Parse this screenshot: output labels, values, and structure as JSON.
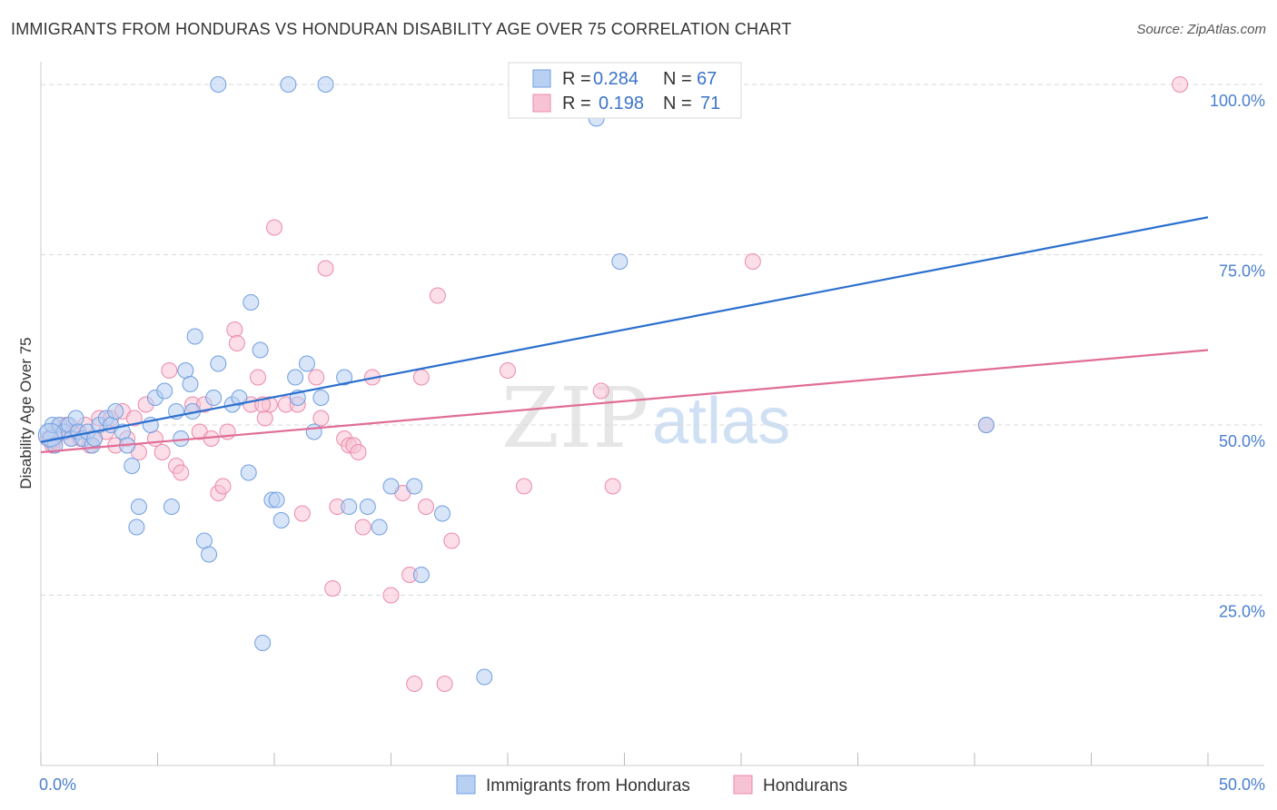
{
  "header": {
    "title": "IMMIGRANTS FROM HONDURAS VS HONDURAN DISABILITY AGE OVER 75 CORRELATION CHART",
    "source": "Source: ZipAtlas.com"
  },
  "colors": {
    "blue": "#6f9fe0",
    "blue_fill": "#b8d0f2",
    "blue_line": "#2b6fce",
    "pink": "#ec8aaa",
    "pink_fill": "#f7c3d4",
    "pink_line": "#e06d97",
    "grid": "#d9d9d9",
    "tick_text": "#4a7fd0"
  },
  "legend_top": {
    "rows": [
      {
        "r_label": "R =",
        "r_value": "0.284",
        "n_label": "N =",
        "n_value": "67"
      },
      {
        "r_label": "R =",
        "r_value": "0.198",
        "n_label": "N =",
        "n_value": "71"
      }
    ]
  },
  "legend_bottom": {
    "items": [
      {
        "label": "Immigrants from Honduras"
      },
      {
        "label": "Hondurans"
      }
    ]
  },
  "watermark": {
    "zip": "ZIP",
    "atlas": "atlas"
  },
  "chart_data": {
    "type": "scatter",
    "title": "IMMIGRANTS FROM HONDURAS VS HONDURAN DISABILITY AGE OVER 75 CORRELATION CHART",
    "xlabel": "",
    "ylabel": "Disability Age Over 75",
    "xlim": [
      0,
      50
    ],
    "ylim": [
      0,
      102
    ],
    "x_tick_labels": [
      "0.0%",
      "50.0%"
    ],
    "y_ticks": [
      25,
      50,
      75,
      100
    ],
    "y_tick_labels": [
      "25.0%",
      "50.0%",
      "75.0%",
      "100.0%"
    ],
    "grid": true,
    "legend": "top-center",
    "series": [
      {
        "name": "Immigrants from Honduras",
        "trend": {
          "x0": 0,
          "y0": 47.5,
          "x1": 50,
          "y1": 80.5
        },
        "points": [
          [
            0.3,
            49
          ],
          [
            0.4,
            48
          ],
          [
            0.5,
            50
          ],
          [
            0.6,
            47
          ],
          [
            0.8,
            50
          ],
          [
            1.0,
            49
          ],
          [
            1.2,
            50
          ],
          [
            1.3,
            48
          ],
          [
            1.5,
            51
          ],
          [
            1.6,
            49
          ],
          [
            1.8,
            48
          ],
          [
            2.0,
            49
          ],
          [
            2.2,
            47
          ],
          [
            2.3,
            48
          ],
          [
            2.5,
            50
          ],
          [
            2.8,
            51
          ],
          [
            3.0,
            50
          ],
          [
            3.2,
            52
          ],
          [
            3.5,
            49
          ],
          [
            3.7,
            47
          ],
          [
            3.9,
            44
          ],
          [
            4.1,
            35
          ],
          [
            4.2,
            38
          ],
          [
            4.7,
            50
          ],
          [
            4.9,
            54
          ],
          [
            5.3,
            55
          ],
          [
            5.6,
            38
          ],
          [
            5.8,
            52
          ],
          [
            6.0,
            48
          ],
          [
            6.2,
            58
          ],
          [
            6.4,
            56
          ],
          [
            6.5,
            52
          ],
          [
            6.6,
            63
          ],
          [
            7.0,
            33
          ],
          [
            7.2,
            31
          ],
          [
            7.4,
            54
          ],
          [
            7.6,
            59
          ],
          [
            8.2,
            53
          ],
          [
            8.5,
            54
          ],
          [
            8.9,
            43
          ],
          [
            9.0,
            68
          ],
          [
            9.4,
            61
          ],
          [
            9.5,
            18
          ],
          [
            9.9,
            39
          ],
          [
            10.1,
            39
          ],
          [
            10.3,
            36
          ],
          [
            10.9,
            57
          ],
          [
            11.0,
            54
          ],
          [
            11.4,
            59
          ],
          [
            11.7,
            49
          ],
          [
            12.0,
            54
          ],
          [
            13.0,
            57
          ],
          [
            13.2,
            38
          ],
          [
            14.0,
            38
          ],
          [
            14.5,
            35
          ],
          [
            15.0,
            41
          ],
          [
            16.0,
            41
          ],
          [
            16.3,
            28
          ],
          [
            17.2,
            37
          ],
          [
            19.0,
            13
          ],
          [
            7.6,
            100
          ],
          [
            10.6,
            100
          ],
          [
            12.2,
            100
          ],
          [
            23.8,
            95
          ],
          [
            25.0,
            100
          ],
          [
            24.8,
            74
          ],
          [
            40.5,
            50
          ]
        ]
      },
      {
        "name": "Hondurans",
        "trend": {
          "x0": 0,
          "y0": 46.0,
          "x1": 50,
          "y1": 61.0
        },
        "points": [
          [
            0.3,
            48
          ],
          [
            0.5,
            47
          ],
          [
            0.6,
            49
          ],
          [
            0.8,
            50
          ],
          [
            1.0,
            49
          ],
          [
            1.1,
            50
          ],
          [
            1.3,
            48
          ],
          [
            1.5,
            49
          ],
          [
            1.7,
            48
          ],
          [
            1.9,
            50
          ],
          [
            2.1,
            47
          ],
          [
            2.3,
            48
          ],
          [
            2.5,
            51
          ],
          [
            2.8,
            49
          ],
          [
            3.0,
            51
          ],
          [
            3.2,
            47
          ],
          [
            3.5,
            52
          ],
          [
            3.7,
            48
          ],
          [
            4.0,
            51
          ],
          [
            4.2,
            46
          ],
          [
            4.5,
            53
          ],
          [
            4.9,
            48
          ],
          [
            5.2,
            46
          ],
          [
            5.5,
            58
          ],
          [
            5.8,
            44
          ],
          [
            6.0,
            43
          ],
          [
            6.5,
            53
          ],
          [
            6.8,
            49
          ],
          [
            7.0,
            53
          ],
          [
            7.3,
            48
          ],
          [
            7.6,
            40
          ],
          [
            7.8,
            41
          ],
          [
            8.0,
            49
          ],
          [
            8.3,
            64
          ],
          [
            8.4,
            62
          ],
          [
            9.0,
            53
          ],
          [
            9.3,
            57
          ],
          [
            9.6,
            51
          ],
          [
            9.8,
            53
          ],
          [
            10.0,
            79
          ],
          [
            10.5,
            53
          ],
          [
            11.0,
            53
          ],
          [
            11.2,
            37
          ],
          [
            11.8,
            57
          ],
          [
            12.0,
            51
          ],
          [
            12.2,
            73
          ],
          [
            12.5,
            26
          ],
          [
            12.7,
            38
          ],
          [
            13.0,
            48
          ],
          [
            13.2,
            47
          ],
          [
            13.4,
            47
          ],
          [
            13.6,
            46
          ],
          [
            13.8,
            35
          ],
          [
            14.2,
            57
          ],
          [
            15.0,
            25
          ],
          [
            15.5,
            40
          ],
          [
            15.8,
            28
          ],
          [
            16.0,
            12
          ],
          [
            16.3,
            57
          ],
          [
            16.5,
            38
          ],
          [
            17.0,
            69
          ],
          [
            17.3,
            12
          ],
          [
            17.6,
            33
          ],
          [
            20.0,
            58
          ],
          [
            20.7,
            41
          ],
          [
            24.0,
            55
          ],
          [
            24.5,
            41
          ],
          [
            30.5,
            74
          ],
          [
            40.5,
            50
          ],
          [
            48.8,
            100
          ],
          [
            9.5,
            53
          ]
        ]
      }
    ]
  }
}
